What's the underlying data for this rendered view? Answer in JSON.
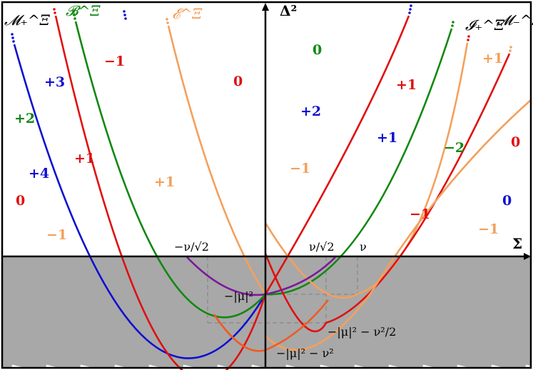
{
  "axes": {
    "x_label": "Σ",
    "y_label": "Δ²"
  },
  "curve_labels": {
    "M_plus": "𝓜₊^Ξ",
    "B": "𝓑^Ξ",
    "E": "𝓔^Ξ",
    "I_plus": "𝓘₊^Ξ",
    "M_minus": "𝓜₋^Ξ"
  },
  "annotations": {
    "neg_nu_sqrt2": "−ν/√2",
    "nu_sqrt2": "ν/√2",
    "nu": "ν",
    "neg_mu2": "−|μ|²",
    "neg_mu2_nu2_half": "−|μ|² − ν²/2",
    "neg_mu2_nu2": "−|μ|² − ν²"
  },
  "region_numbers": [
    {
      "id": "r1",
      "text": "+3",
      "color": "#1010d0"
    },
    {
      "id": "r2",
      "text": "+2",
      "color": "#118811"
    },
    {
      "id": "r3",
      "text": "+4",
      "color": "#1010d0"
    },
    {
      "id": "r4",
      "text": "0",
      "color": "#e01010"
    },
    {
      "id": "r5",
      "text": "−1",
      "color": "#f4a05c"
    },
    {
      "id": "r6",
      "text": "+1",
      "color": "#e01010"
    },
    {
      "id": "r7",
      "text": "−1",
      "color": "#e01010"
    },
    {
      "id": "r8",
      "text": "+1",
      "color": "#f4a05c"
    },
    {
      "id": "r9",
      "text": "0",
      "color": "#e01010"
    },
    {
      "id": "r10",
      "text": "0",
      "color": "#118811"
    },
    {
      "id": "r11",
      "text": "+2",
      "color": "#1010d0"
    },
    {
      "id": "r12",
      "text": "−1",
      "color": "#f4a05c"
    },
    {
      "id": "r13",
      "text": "+1",
      "color": "#e01010"
    },
    {
      "id": "r14",
      "text": "+1",
      "color": "#1010d0"
    },
    {
      "id": "r15",
      "text": "−2",
      "color": "#118811"
    },
    {
      "id": "r16",
      "text": "−1",
      "color": "#e01010"
    },
    {
      "id": "r17",
      "text": "+1",
      "color": "#f4a05c"
    },
    {
      "id": "r18",
      "text": "0",
      "color": "#e01010"
    },
    {
      "id": "r19",
      "text": "0",
      "color": "#1010d0"
    },
    {
      "id": "r20",
      "text": "−1",
      "color": "#f4a05c"
    }
  ],
  "colors": {
    "blue": "#1010d0",
    "red": "#e01010",
    "green": "#118811",
    "orange": "#f4a05c",
    "purple": "#7a1a9a",
    "hatch": "#a8a8a8",
    "dashed": "#808080"
  }
}
